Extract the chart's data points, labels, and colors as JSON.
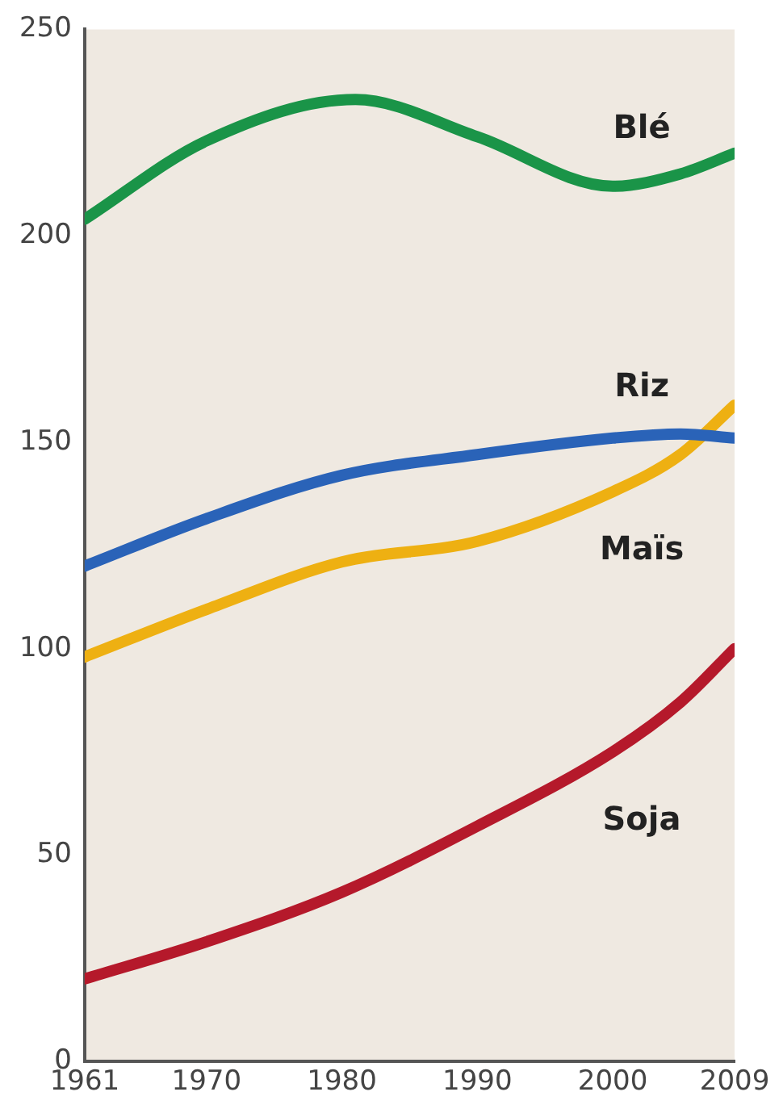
{
  "chart_data": {
    "type": "line",
    "x": [
      1961,
      1970,
      1980,
      1990,
      2000,
      2005,
      2009
    ],
    "series": [
      {
        "name": "Blé",
        "color": "#1a9448",
        "x": [
          1961,
          1970,
          1981,
          1990,
          2000,
          2005,
          2009
        ],
        "values": [
          204,
          223,
          233,
          224,
          212,
          215,
          220
        ]
      },
      {
        "name": "Riz",
        "color": "#2a63b8",
        "values": [
          120,
          131.5,
          142,
          147,
          151,
          152,
          151
        ]
      },
      {
        "name": "Maïs",
        "color": "#eeb012",
        "values": [
          98,
          109.5,
          121,
          126,
          138,
          147,
          159
        ]
      },
      {
        "name": "Soja",
        "color": "#b5192b",
        "values": [
          20,
          29,
          41,
          57,
          75,
          87,
          100
        ]
      }
    ],
    "xlim": [
      1961,
      2009
    ],
    "xticks": [
      1961,
      1970,
      1980,
      1990,
      2000,
      2009
    ],
    "ylim": [
      0,
      250
    ],
    "yticks": [
      0,
      50,
      100,
      150,
      200,
      250
    ],
    "grid": false,
    "legend": false,
    "marker": "none",
    "line_style": "solid"
  }
}
